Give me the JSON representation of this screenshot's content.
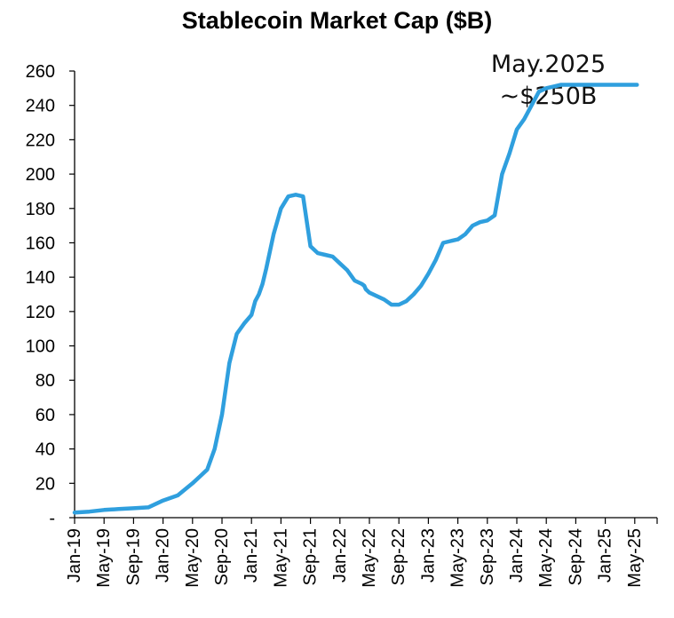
{
  "chart_data": {
    "type": "line",
    "title": "Stablecoin Market Cap ($B)",
    "xlabel": "",
    "ylabel": "",
    "ylim": [
      0,
      260
    ],
    "yticks": [
      0,
      20,
      40,
      60,
      80,
      100,
      120,
      140,
      160,
      180,
      200,
      220,
      240,
      260
    ],
    "ytick_labels": [
      "-",
      "20",
      "40",
      "60",
      "80",
      "100",
      "120",
      "140",
      "160",
      "180",
      "200",
      "220",
      "240",
      "260"
    ],
    "xticks": [
      "Jan-19",
      "May-19",
      "Sep-19",
      "Jan-20",
      "May-20",
      "Sep-20",
      "Jan-21",
      "May-21",
      "Sep-21",
      "Jan-22",
      "May-22",
      "Sep-22",
      "Jan-23",
      "May-23",
      "Sep-23",
      "Jan-24",
      "May-24",
      "Sep-24",
      "Jan-25",
      "May-25"
    ],
    "grid": false,
    "line_color": "#2f9fde",
    "annotation": {
      "line1": "May.2025",
      "line2": "~$250B"
    },
    "series": [
      {
        "name": "Stablecoin Market Cap",
        "x": [
          0,
          2,
          4,
          6,
          8,
          10,
          12,
          14,
          16,
          17,
          18,
          19,
          20,
          21,
          22,
          23,
          24,
          24.5,
          25,
          25.5,
          26,
          27,
          28,
          29,
          30,
          31,
          32,
          33,
          34,
          35,
          36,
          37,
          38,
          39,
          39.3,
          39.5,
          40,
          41,
          42,
          43,
          44,
          45,
          46,
          47,
          48,
          49,
          50,
          51,
          52,
          53,
          54,
          55,
          56,
          57,
          58,
          59,
          60,
          61,
          62,
          63,
          64,
          65,
          66,
          67,
          68,
          69,
          70,
          71,
          72,
          72.5,
          73,
          74,
          75,
          76,
          76.3
        ],
        "values": [
          3,
          3.5,
          4.5,
          5,
          5.5,
          6,
          10,
          13,
          20,
          24,
          28,
          40,
          60,
          90,
          107,
          113,
          118,
          126,
          130,
          136,
          145,
          165,
          180,
          187,
          188,
          187,
          158,
          154,
          153,
          152,
          148,
          144,
          138,
          136,
          135,
          133,
          131,
          129,
          127,
          124,
          124,
          126,
          130,
          135,
          142,
          150,
          160,
          161,
          162,
          165,
          170,
          172,
          173,
          176,
          200,
          212,
          226,
          232,
          240,
          248,
          250,
          251,
          252,
          252,
          252,
          252,
          252,
          252,
          252,
          252,
          252,
          252,
          252,
          252,
          252
        ]
      }
    ]
  }
}
